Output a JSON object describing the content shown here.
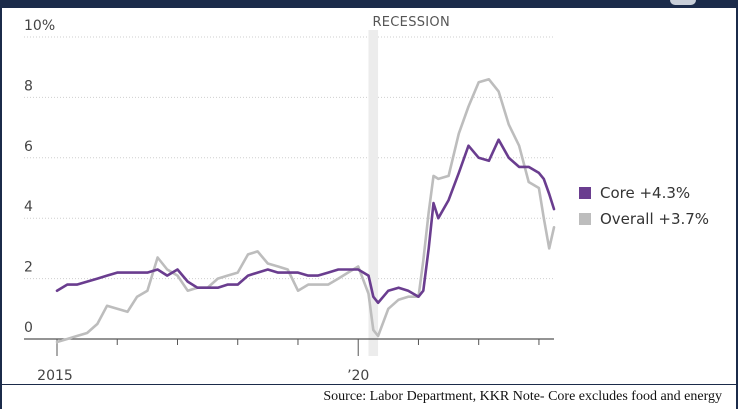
{
  "chart_data": {
    "type": "line",
    "y_tick_labels": [
      "10%",
      "8",
      "6",
      "4",
      "2",
      "0"
    ],
    "y_ticks": [
      10,
      8,
      6,
      4,
      2,
      0
    ],
    "ylim": [
      -0.4,
      10
    ],
    "x_tick_labels": [
      "2015",
      "’20"
    ],
    "xlim": [
      2015.0,
      2023.25
    ],
    "recession": {
      "label": "RECESSION",
      "start": 2020.17,
      "end": 2020.33
    },
    "legend_position": "right",
    "grid": true,
    "series": [
      {
        "name": "Core +4.3%",
        "color": "#6a3d8f",
        "x": [
          2015.0,
          2015.17,
          2015.33,
          2015.5,
          2015.67,
          2015.83,
          2016.0,
          2016.17,
          2016.33,
          2016.5,
          2016.67,
          2016.83,
          2017.0,
          2017.17,
          2017.33,
          2017.5,
          2017.67,
          2017.83,
          2018.0,
          2018.17,
          2018.33,
          2018.5,
          2018.67,
          2018.83,
          2019.0,
          2019.17,
          2019.33,
          2019.5,
          2019.67,
          2019.83,
          2020.0,
          2020.17,
          2020.25,
          2020.33,
          2020.5,
          2020.67,
          2020.83,
          2021.0,
          2021.08,
          2021.17,
          2021.25,
          2021.33,
          2021.5,
          2021.67,
          2021.83,
          2022.0,
          2022.17,
          2022.33,
          2022.5,
          2022.67,
          2022.83,
          2023.0,
          2023.08,
          2023.17,
          2023.25
        ],
        "values": [
          1.6,
          1.8,
          1.8,
          1.9,
          2.0,
          2.1,
          2.2,
          2.2,
          2.2,
          2.2,
          2.3,
          2.1,
          2.3,
          1.9,
          1.7,
          1.7,
          1.7,
          1.8,
          1.8,
          2.1,
          2.2,
          2.3,
          2.2,
          2.2,
          2.2,
          2.1,
          2.1,
          2.2,
          2.3,
          2.3,
          2.3,
          2.1,
          1.4,
          1.2,
          1.6,
          1.7,
          1.6,
          1.4,
          1.6,
          3.0,
          4.5,
          4.0,
          4.6,
          5.5,
          6.4,
          6.0,
          5.9,
          6.6,
          6.0,
          5.7,
          5.7,
          5.5,
          5.3,
          4.8,
          4.3
        ]
      },
      {
        "name": "Overall +3.7%",
        "color": "#bdbdbd",
        "x": [
          2015.0,
          2015.17,
          2015.33,
          2015.5,
          2015.67,
          2015.83,
          2016.0,
          2016.17,
          2016.33,
          2016.5,
          2016.67,
          2016.83,
          2017.0,
          2017.17,
          2017.33,
          2017.5,
          2017.67,
          2017.83,
          2018.0,
          2018.17,
          2018.33,
          2018.5,
          2018.67,
          2018.83,
          2019.0,
          2019.17,
          2019.33,
          2019.5,
          2019.67,
          2019.83,
          2020.0,
          2020.17,
          2020.25,
          2020.33,
          2020.5,
          2020.67,
          2020.83,
          2021.0,
          2021.08,
          2021.17,
          2021.25,
          2021.33,
          2021.5,
          2021.67,
          2021.83,
          2022.0,
          2022.17,
          2022.33,
          2022.5,
          2022.67,
          2022.83,
          2023.0,
          2023.08,
          2023.17,
          2023.25
        ],
        "values": [
          -0.1,
          0.0,
          0.1,
          0.2,
          0.5,
          1.1,
          1.0,
          0.9,
          1.4,
          1.6,
          2.7,
          2.3,
          2.1,
          1.6,
          1.7,
          1.7,
          2.0,
          2.1,
          2.2,
          2.8,
          2.9,
          2.5,
          2.4,
          2.3,
          1.6,
          1.8,
          1.8,
          1.8,
          2.0,
          2.2,
          2.4,
          1.5,
          0.3,
          0.1,
          1.0,
          1.3,
          1.4,
          1.4,
          2.6,
          4.2,
          5.4,
          5.3,
          5.4,
          6.8,
          7.7,
          8.5,
          8.6,
          8.2,
          7.1,
          6.4,
          5.2,
          5.0,
          4.0,
          3.0,
          3.7
        ]
      }
    ]
  },
  "source_text": "Source: Labor Department, KKR Note- Core excludes food and energy"
}
